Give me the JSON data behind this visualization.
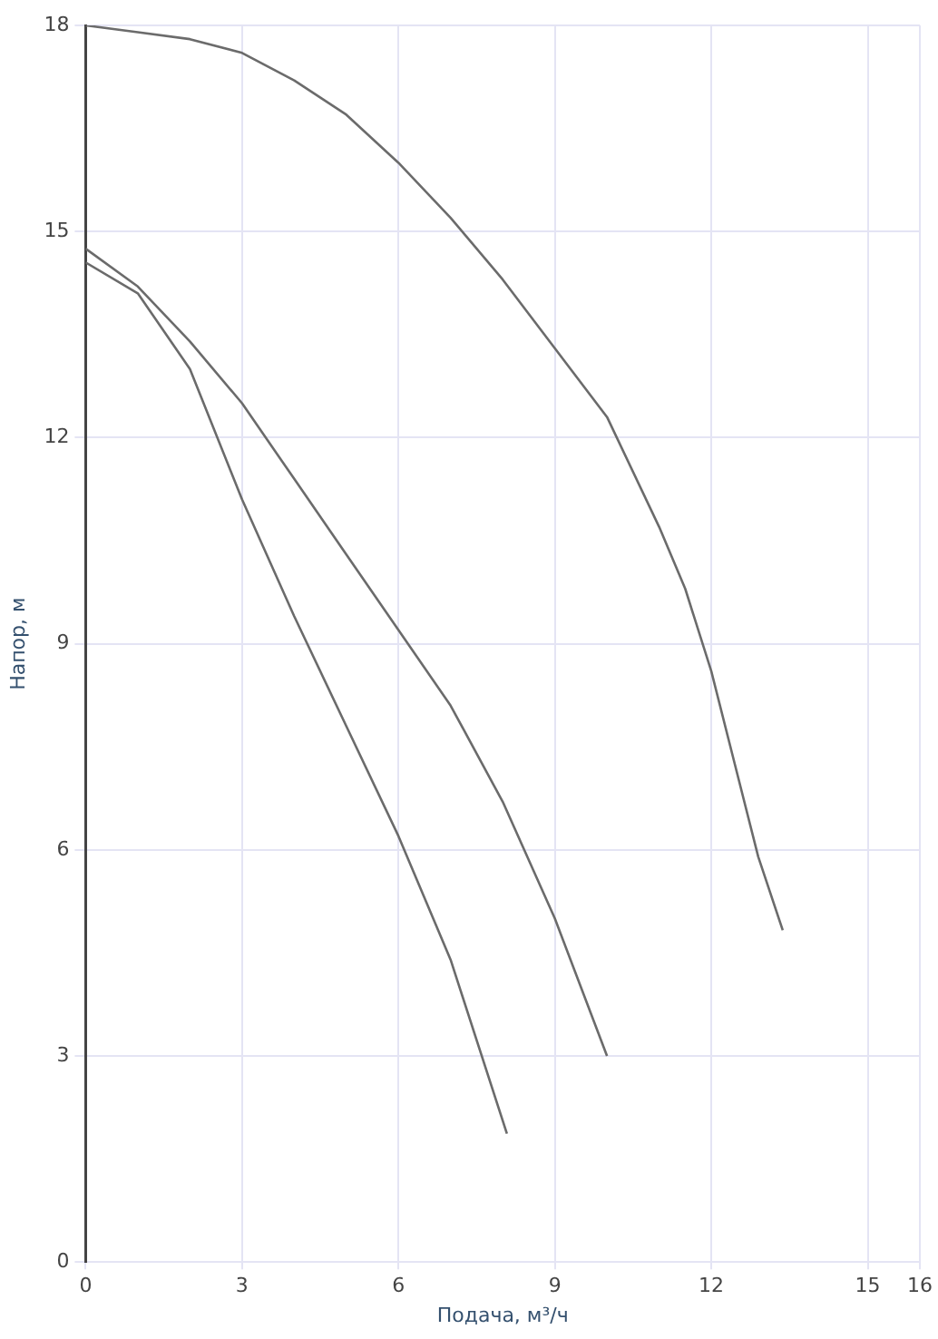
{
  "chart_data": {
    "type": "line",
    "xlabel": "Подача, м³/ч",
    "ylabel": "Напор, м",
    "xlim": [
      0,
      16
    ],
    "xticks": [
      0,
      3,
      6,
      9,
      12,
      15,
      16
    ],
    "ylim": [
      0,
      18
    ],
    "yticks": [
      0,
      3,
      6,
      9,
      12,
      15,
      18
    ],
    "grid": true,
    "legend": false,
    "marker": "none",
    "line_style": "solid",
    "series": [
      {
        "color": "#6b6b6b",
        "x": [
          0,
          1,
          2,
          3,
          4,
          5,
          6,
          7,
          8,
          9,
          10,
          11,
          11.5,
          12,
          12.5,
          12.9,
          13.37
        ],
        "values": [
          18,
          17.9,
          17.8,
          17.6,
          17.2,
          16.7,
          16.0,
          15.2,
          14.3,
          13.3,
          12.3,
          10.7,
          9.8,
          8.6,
          7.1,
          5.9,
          4.83
        ]
      },
      {
        "color": "#6b6b6b",
        "x": [
          0,
          1,
          2,
          3,
          4,
          5,
          6,
          7,
          8,
          9,
          10
        ],
        "values": [
          14.75,
          14.2,
          13.4,
          12.5,
          11.4,
          10.3,
          9.2,
          8.1,
          6.7,
          5.0,
          3.0
        ]
      },
      {
        "color": "#6b6b6b",
        "x": [
          0,
          1,
          2,
          3,
          4,
          5,
          6,
          7,
          8.08
        ],
        "values": [
          14.55,
          14.1,
          13.0,
          11.1,
          9.4,
          7.8,
          6.2,
          4.4,
          1.87
        ]
      }
    ]
  }
}
